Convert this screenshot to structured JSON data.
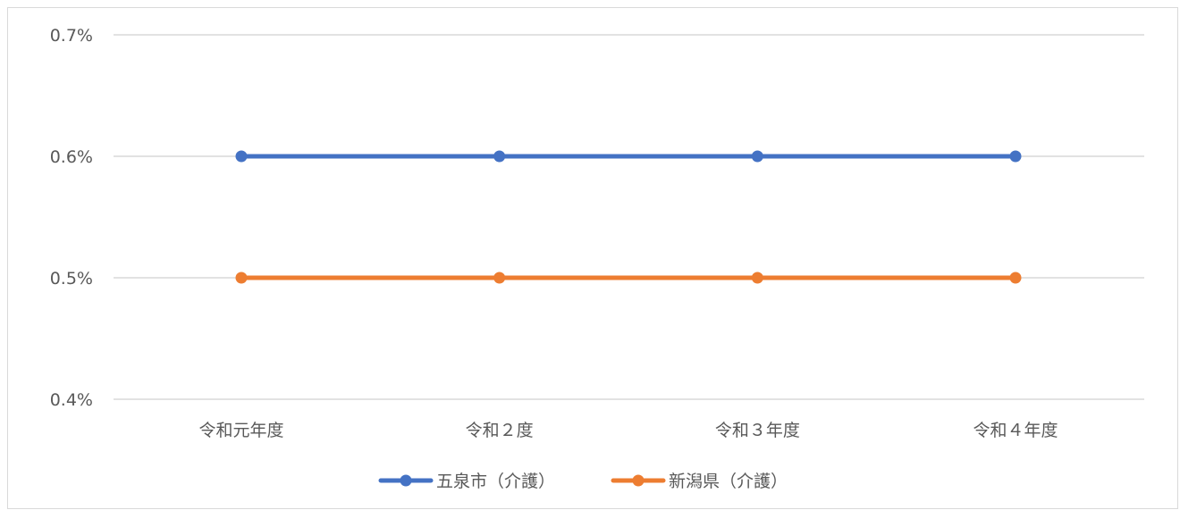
{
  "chart_data": {
    "type": "line",
    "categories": [
      "令和元年度",
      "令和２度",
      "令和３年度",
      "令和４年度"
    ],
    "series": [
      {
        "name": "五泉市（介護）",
        "values": [
          0.6,
          0.6,
          0.6,
          0.6
        ],
        "color": "#4472C4"
      },
      {
        "name": "新潟県（介護）",
        "values": [
          0.5,
          0.5,
          0.5,
          0.5
        ],
        "color": "#ED7D31"
      }
    ],
    "ylim": [
      0.4,
      0.7
    ],
    "yticks": [
      0.4,
      0.5,
      0.6,
      0.7
    ],
    "ytick_labels": [
      "0.4%",
      "0.5%",
      "0.6%",
      "0.7%"
    ],
    "grid": true,
    "legend_position": "bottom",
    "gridline_color": "#d9d9d9",
    "text_color": "#595959"
  }
}
